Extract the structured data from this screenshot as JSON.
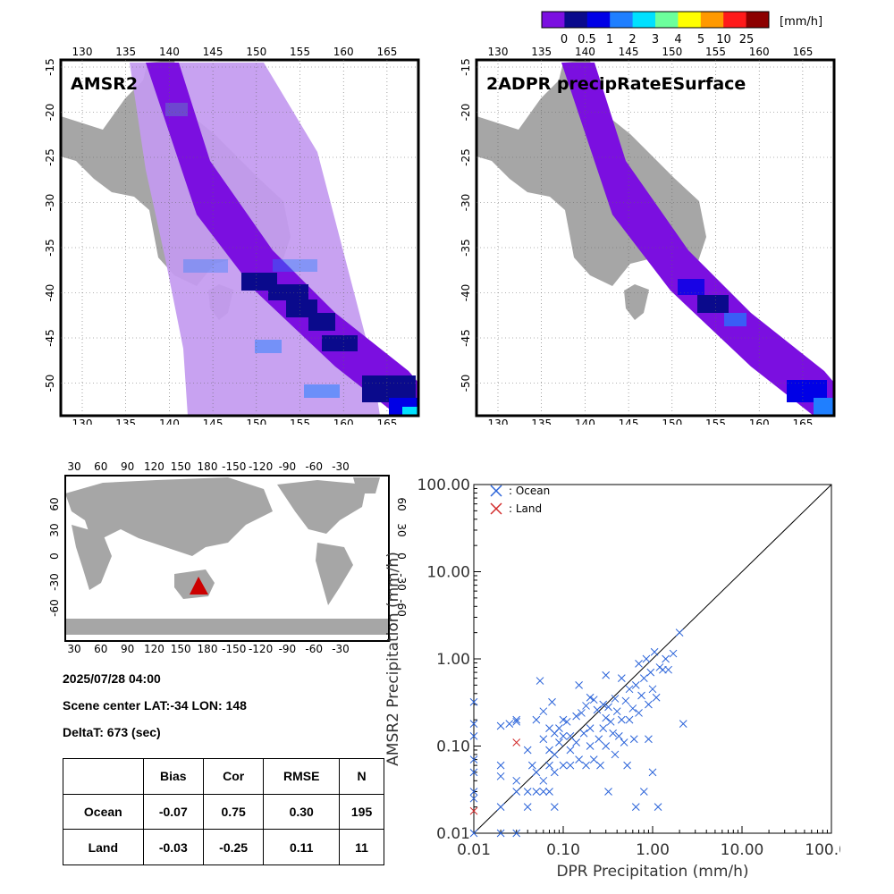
{
  "colorbar": {
    "unit": "[mm/h]",
    "ticks": [
      "0",
      "0.5",
      "1",
      "2",
      "3",
      "4",
      "5",
      "10",
      "25"
    ],
    "colors": [
      "#7b0fe0",
      "#0a0a8c",
      "#0000e6",
      "#1f7fff",
      "#00e0ff",
      "#6cff9c",
      "#ffff00",
      "#ff9900",
      "#ff1a1a",
      "#8c0000"
    ]
  },
  "colors": {
    "land": "#a6a6a6",
    "swath_light": "#c39af0",
    "swath_core": "#7b0fe0",
    "ocean_marker": "#2a63d9",
    "land_marker": "#d22a2a",
    "scene_marker": "#cc0000"
  },
  "panels": {
    "amsr2_title": "AMSR2",
    "dpr_title": "2ADPR precipRateESurface",
    "lon_ticks": [
      "130",
      "135",
      "140",
      "145",
      "150",
      "155",
      "160",
      "165"
    ],
    "lat_ticks": [
      "-15",
      "-20",
      "-25",
      "-30",
      "-35",
      "-40",
      "-45",
      "-50"
    ]
  },
  "world_map": {
    "lon_ticks": [
      "30",
      "60",
      "90",
      "120",
      "150",
      "180",
      "-150",
      "-120",
      "-90",
      "-60",
      "-30"
    ],
    "lat_ticks": [
      "60",
      "30",
      "0",
      "-30",
      "-60"
    ]
  },
  "info": {
    "datetime": "2025/07/28 04:00",
    "scene_center": "Scene center LAT:-34   LON: 148",
    "delta_t": "DeltaT:  673 (sec)"
  },
  "stats_table": {
    "headers": [
      "",
      "Bias",
      "Cor",
      "RMSE",
      "N"
    ],
    "rows": [
      {
        "label": "Ocean",
        "bias": "-0.07",
        "cor": "0.75",
        "rmse": "0.30",
        "n": "195"
      },
      {
        "label": "Land",
        "bias": "-0.03",
        "cor": "-0.25",
        "rmse": "0.11",
        "n": "11"
      }
    ]
  },
  "chart_data": {
    "type": "scatter",
    "xscale": "log",
    "yscale": "log",
    "xlim": [
      0.01,
      100
    ],
    "ylim": [
      0.01,
      100
    ],
    "xlabel": "DPR Precipitation (mm/h)",
    "ylabel": "AMSR2 Precipitation (mm/h)",
    "tick_labels": [
      "0.01",
      "0.10",
      "1.00",
      "10.00",
      "100.00"
    ],
    "legend_placement": "top-left",
    "series": [
      {
        "name": ": Ocean",
        "marker": "x",
        "color": "#2a63d9",
        "points": [
          [
            0.01,
            0.32
          ],
          [
            0.01,
            0.18
          ],
          [
            0.01,
            0.13
          ],
          [
            0.01,
            0.07
          ],
          [
            0.01,
            0.05
          ],
          [
            0.01,
            0.03
          ],
          [
            0.01,
            0.025
          ],
          [
            0.01,
            0.01
          ],
          [
            0.02,
            0.17
          ],
          [
            0.02,
            0.06
          ],
          [
            0.02,
            0.045
          ],
          [
            0.02,
            0.02
          ],
          [
            0.02,
            0.01
          ],
          [
            0.025,
            0.18
          ],
          [
            0.03,
            0.2
          ],
          [
            0.03,
            0.19
          ],
          [
            0.03,
            0.04
          ],
          [
            0.03,
            0.03
          ],
          [
            0.03,
            0.01
          ],
          [
            0.04,
            0.09
          ],
          [
            0.04,
            0.03
          ],
          [
            0.04,
            0.02
          ],
          [
            0.045,
            0.06
          ],
          [
            0.05,
            0.2
          ],
          [
            0.05,
            0.05
          ],
          [
            0.05,
            0.03
          ],
          [
            0.055,
            0.56
          ],
          [
            0.06,
            0.25
          ],
          [
            0.06,
            0.12
          ],
          [
            0.06,
            0.04
          ],
          [
            0.06,
            0.03
          ],
          [
            0.07,
            0.16
          ],
          [
            0.07,
            0.09
          ],
          [
            0.07,
            0.06
          ],
          [
            0.07,
            0.03
          ],
          [
            0.075,
            0.32
          ],
          [
            0.08,
            0.14
          ],
          [
            0.08,
            0.08
          ],
          [
            0.08,
            0.05
          ],
          [
            0.08,
            0.02
          ],
          [
            0.09,
            0.16
          ],
          [
            0.09,
            0.11
          ],
          [
            0.1,
            0.2
          ],
          [
            0.1,
            0.13
          ],
          [
            0.1,
            0.06
          ],
          [
            0.11,
            0.19
          ],
          [
            0.12,
            0.13
          ],
          [
            0.12,
            0.09
          ],
          [
            0.12,
            0.06
          ],
          [
            0.14,
            0.22
          ],
          [
            0.14,
            0.11
          ],
          [
            0.15,
            0.5
          ],
          [
            0.15,
            0.07
          ],
          [
            0.16,
            0.24
          ],
          [
            0.17,
            0.14
          ],
          [
            0.18,
            0.29
          ],
          [
            0.18,
            0.06
          ],
          [
            0.2,
            0.36
          ],
          [
            0.2,
            0.16
          ],
          [
            0.2,
            0.1
          ],
          [
            0.22,
            0.34
          ],
          [
            0.22,
            0.07
          ],
          [
            0.24,
            0.26
          ],
          [
            0.25,
            0.12
          ],
          [
            0.26,
            0.06
          ],
          [
            0.28,
            0.3
          ],
          [
            0.28,
            0.16
          ],
          [
            0.3,
            0.65
          ],
          [
            0.3,
            0.21
          ],
          [
            0.3,
            0.1
          ],
          [
            0.32,
            0.28
          ],
          [
            0.32,
            0.03
          ],
          [
            0.34,
            0.19
          ],
          [
            0.36,
            0.14
          ],
          [
            0.38,
            0.35
          ],
          [
            0.38,
            0.08
          ],
          [
            0.4,
            0.25
          ],
          [
            0.42,
            0.13
          ],
          [
            0.45,
            0.6
          ],
          [
            0.45,
            0.2
          ],
          [
            0.48,
            0.11
          ],
          [
            0.5,
            0.33
          ],
          [
            0.52,
            0.06
          ],
          [
            0.55,
            0.45
          ],
          [
            0.55,
            0.2
          ],
          [
            0.6,
            0.27
          ],
          [
            0.62,
            0.12
          ],
          [
            0.65,
            0.5
          ],
          [
            0.65,
            0.02
          ],
          [
            0.7,
            0.88
          ],
          [
            0.7,
            0.24
          ],
          [
            0.75,
            0.38
          ],
          [
            0.8,
            0.6
          ],
          [
            0.8,
            0.03
          ],
          [
            0.85,
            1.0
          ],
          [
            0.9,
            0.3
          ],
          [
            0.9,
            0.12
          ],
          [
            0.95,
            0.7
          ],
          [
            1.0,
            0.45
          ],
          [
            1.0,
            0.05
          ],
          [
            1.05,
            1.2
          ],
          [
            1.1,
            0.36
          ],
          [
            1.15,
            0.02
          ],
          [
            1.2,
            0.8
          ],
          [
            1.3,
            0.75
          ],
          [
            1.4,
            1.0
          ],
          [
            1.5,
            0.75
          ],
          [
            1.7,
            1.15
          ],
          [
            2.0,
            2.0
          ],
          [
            2.2,
            0.18
          ]
        ]
      },
      {
        "name": ": Land",
        "marker": "x",
        "color": "#d22a2a",
        "points": [
          [
            0.01,
            0.018
          ],
          [
            0.03,
            0.11
          ]
        ]
      }
    ]
  }
}
